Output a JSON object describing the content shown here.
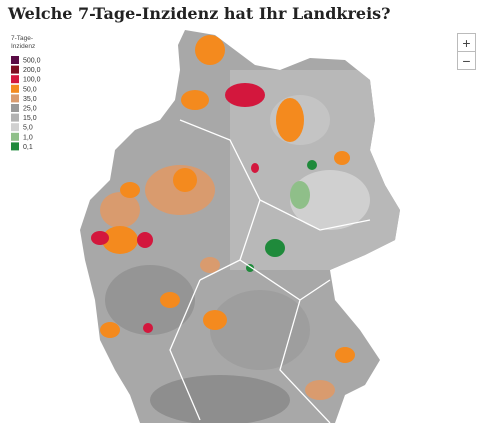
{
  "header": {
    "title": "Welche 7-Tage-Inzidenz hat Ihr Landkreis?"
  },
  "legend": {
    "title_lines": [
      "7-Tage-",
      "Inzidenz"
    ],
    "items": [
      {
        "label": "500,0",
        "color": "#5a0b45"
      },
      {
        "label": "200,0",
        "color": "#7d0d22"
      },
      {
        "label": "100,0",
        "color": "#d3173d"
      },
      {
        "label": "50,0",
        "color": "#f48a1e"
      },
      {
        "label": "35,0",
        "color": "#d99b6e"
      },
      {
        "label": "25,0",
        "color": "#999999"
      },
      {
        "label": "15,0",
        "color": "#b2b2b2"
      },
      {
        "label": "5,0",
        "color": "#d0d0d0"
      },
      {
        "label": "1,0",
        "color": "#8fbf89"
      },
      {
        "label": "0,1",
        "color": "#1f8a3b"
      }
    ]
  },
  "controls": {
    "zoom_in": "+",
    "zoom_out": "−"
  }
}
